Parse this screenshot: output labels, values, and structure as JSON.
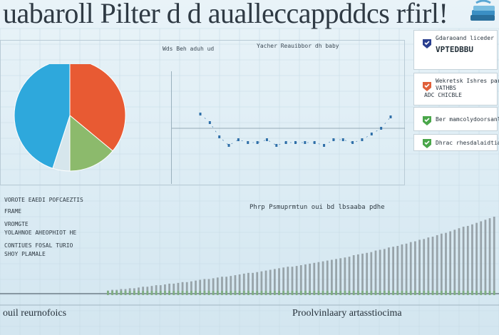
{
  "header": {
    "title": "uabaroll Pilter d d aualleccappddcs rfirl!"
  },
  "top_panel": {
    "left_sublabel": "Wds Beh aduh ud",
    "right_sublabel": "Yacher Reauibbor dh baby"
  },
  "legend": {
    "cards": [
      {
        "line1": "Gdaraoand liceder",
        "line2": "VPTEDBBU",
        "icon": "check-badge-icon",
        "color": "#2a3f8f"
      },
      {
        "line1": "Wekretsk Ishres paral",
        "line2": "VATHBS",
        "line3": "ADC CHICBLE",
        "icon": "check-badge-icon",
        "color": "#e0603a"
      },
      {
        "line1": "Ber mamcolydoorsanllit",
        "icon": "check-badge-icon",
        "color": "#4aa64a"
      },
      {
        "line1": "Dhrac rhesdalaidtia",
        "icon": "check-badge-icon",
        "color": "#4aa64a"
      }
    ]
  },
  "lower_notes": [
    "VOROTE EAEDI POFCAEZTIS",
    "FRAME",
    "VROMGTE",
    "YOLAHNOE AHEOPHIOT HE",
    "CONTIUES FOSAL TURIO",
    "SHOY PLAMALE"
  ],
  "bars_chart_label": "Phrp Psmuprmtun oui bd lbsaaba pdhe",
  "footer": {
    "left": "ouil reurnofoics",
    "right": "Proolvinlaary artasstiocima"
  },
  "chart_data": [
    {
      "type": "pie",
      "title": "",
      "slices": [
        {
          "label": "",
          "value": 36,
          "color": "#e85a33"
        },
        {
          "label": "",
          "value": 14,
          "color": "#8cba6c"
        },
        {
          "label": "",
          "value": 5,
          "color": "#d6e6ec"
        },
        {
          "label": "",
          "value": 45,
          "color": "#2ea8dc"
        }
      ]
    },
    {
      "type": "line",
      "title": "",
      "x": [
        0,
        1,
        2,
        3,
        4,
        5,
        6,
        7,
        8,
        9,
        10,
        11,
        12,
        13,
        14,
        15,
        16,
        17,
        18,
        19,
        20
      ],
      "series": [
        {
          "values": [
            5,
            2,
            -3,
            -6,
            -4,
            -5,
            -5,
            -4,
            -6,
            -5,
            -5,
            -5,
            -5,
            -6,
            -4,
            -4,
            -5,
            -4,
            -2,
            0,
            4
          ]
        }
      ],
      "ylim": [
        -10,
        10
      ],
      "color": "#2f6fa8"
    },
    {
      "type": "bar",
      "title": "",
      "color": "#8c969c",
      "values": [
        4,
        5,
        5,
        6,
        6,
        7,
        7,
        8,
        9,
        9,
        10,
        11,
        11,
        12,
        13,
        13,
        14,
        15,
        15,
        16,
        17,
        18,
        19,
        19,
        20,
        21,
        22,
        22,
        23,
        24,
        25,
        26,
        27,
        27,
        28,
        29,
        30,
        31,
        32,
        33,
        34,
        35,
        35,
        36,
        37,
        38,
        39,
        40,
        41,
        42,
        43,
        44,
        45,
        46,
        47,
        48,
        50,
        51,
        52,
        53,
        54,
        56,
        57,
        58,
        60,
        61,
        62,
        64,
        65,
        67,
        68,
        70,
        71,
        73,
        74,
        76,
        78,
        79,
        81,
        83,
        85,
        87,
        88,
        90,
        92,
        94,
        96,
        98,
        100
      ],
      "ylim": [
        0,
        100
      ]
    }
  ]
}
